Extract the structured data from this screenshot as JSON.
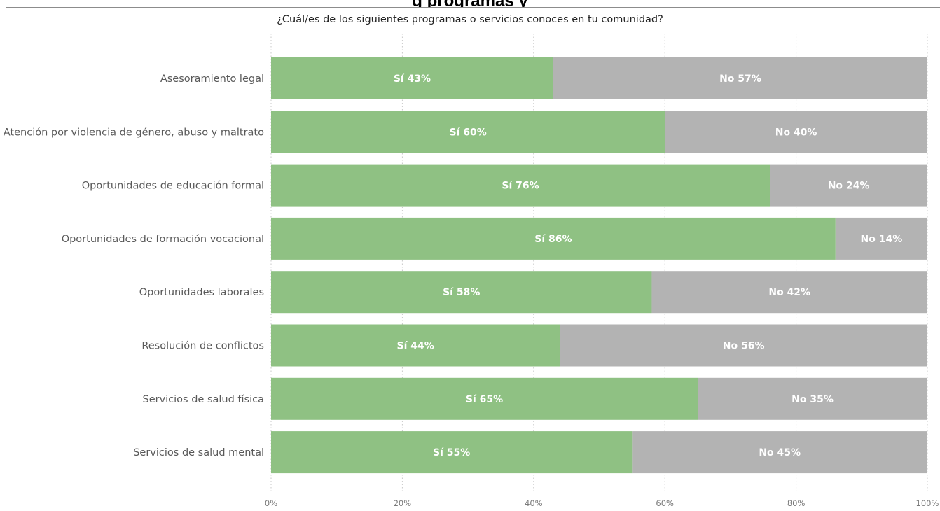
{
  "page": {
    "top_cut_title": "g                                          programas y"
  },
  "chart_data": {
    "type": "bar",
    "orientation": "horizontal",
    "stacked": true,
    "title": "¿Cuál/es de los siguientes programas o servicios conoces en tu comunidad?",
    "categories": [
      "Asesoramiento legal",
      "Atención por violencia de género, abuso y maltrato",
      "Oportunidades de educación formal",
      "Oportunidades de formación vocacional",
      "Oportunidades laborales",
      "Resolución de conflictos",
      "Servicios de salud física",
      "Servicios de salud mental"
    ],
    "series": [
      {
        "name": "Sí",
        "color": "#8fc183",
        "values": [
          43,
          60,
          76,
          86,
          58,
          44,
          65,
          55
        ],
        "labels": [
          "Sí 43%",
          "Sí 60%",
          "Sí 76%",
          "Sí 86%",
          "Sí 58%",
          "Sí 44%",
          "Sí 65%",
          "Sí 55%"
        ]
      },
      {
        "name": "No",
        "color": "#b3b3b3",
        "values": [
          57,
          40,
          24,
          14,
          42,
          56,
          35,
          45
        ],
        "labels": [
          "No 57%",
          "No 40%",
          "No 24%",
          "No 14%",
          "No 42%",
          "No 56%",
          "No 35%",
          "No 45%"
        ]
      }
    ],
    "xlim": [
      0,
      100
    ],
    "x_ticks": [
      "0%",
      "20%",
      "40%",
      "60%",
      "80%",
      "100%"
    ],
    "grid": "vertical dotted",
    "legend": "none"
  }
}
